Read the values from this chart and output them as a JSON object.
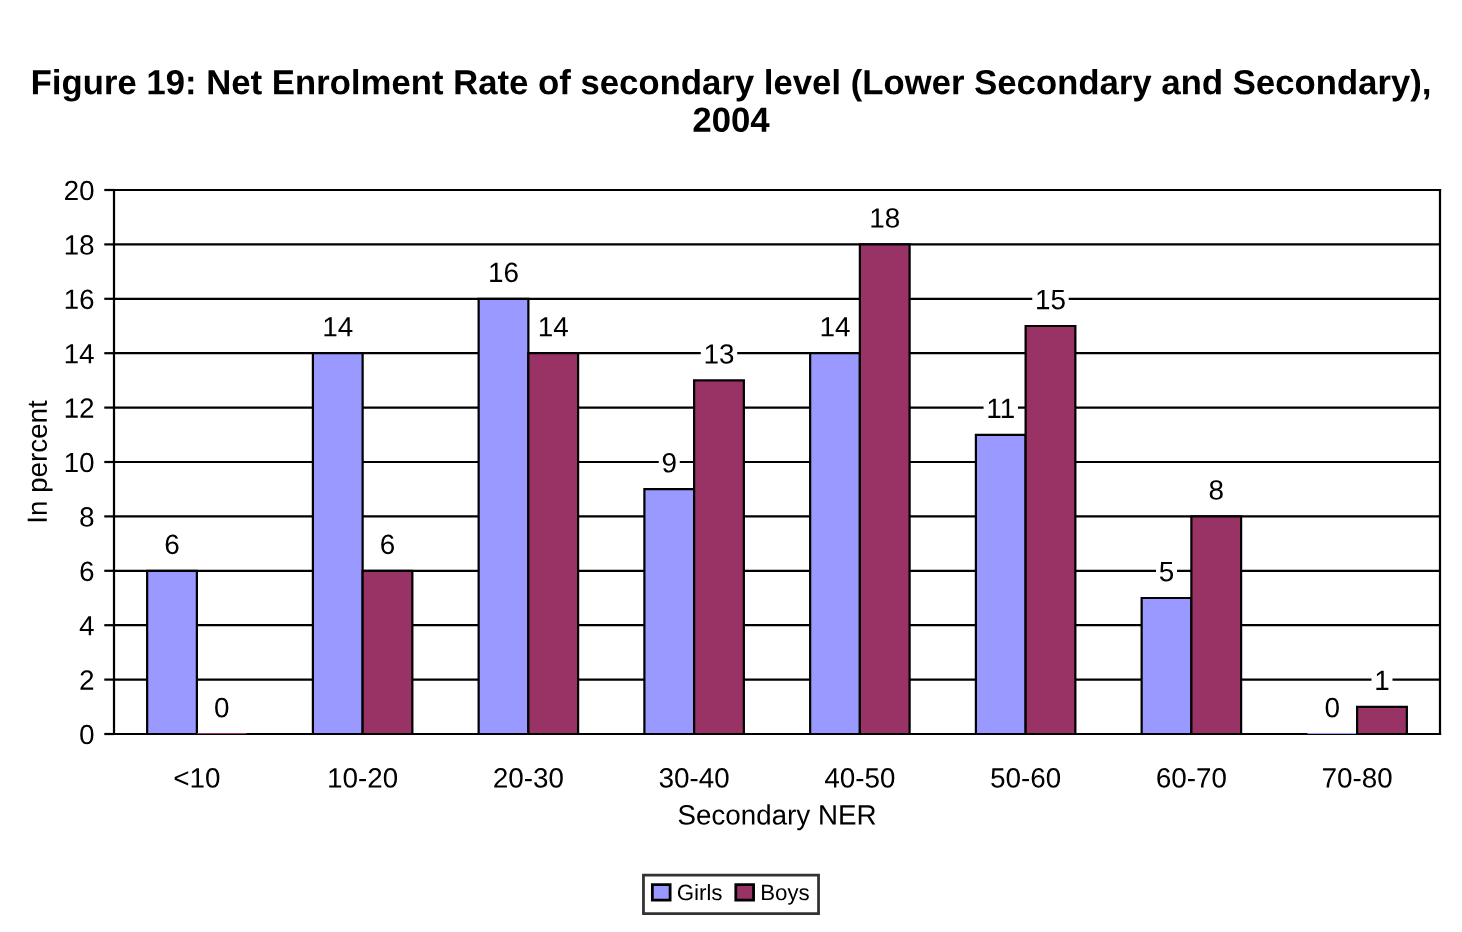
{
  "chart_data": {
    "type": "bar",
    "title": "Figure 19: Net Enrolment Rate of secondary level (Lower Secondary and Secondary), 2004",
    "xlabel": "Secondary NER",
    "ylabel": "In percent",
    "categories": [
      "<10",
      "10-20",
      "20-30",
      "30-40",
      "40-50",
      "50-60",
      "60-70",
      "70-80"
    ],
    "series": [
      {
        "name": "Girls",
        "color": "#9999ff",
        "values": [
          6,
          14,
          16,
          9,
          14,
          11,
          5,
          0
        ]
      },
      {
        "name": "Boys",
        "color": "#993366",
        "values": [
          0,
          6,
          14,
          13,
          18,
          15,
          8,
          1
        ]
      }
    ],
    "ylim": [
      0,
      20
    ],
    "yticks": [
      0,
      2,
      4,
      6,
      8,
      10,
      12,
      14,
      16,
      18,
      20
    ],
    "grid": "y",
    "legend": "bottom",
    "data_labels": true
  }
}
